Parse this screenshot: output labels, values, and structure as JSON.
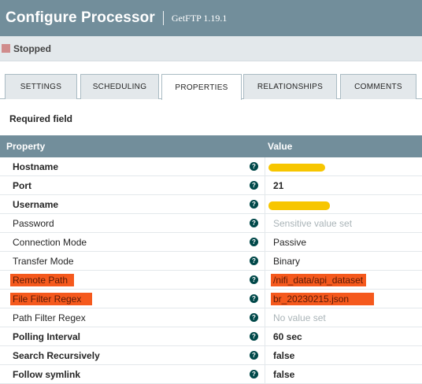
{
  "header": {
    "title": "Configure Processor",
    "subtitle": "GetFTP 1.19.1"
  },
  "status": {
    "label": "Stopped",
    "color": "#d08c8c"
  },
  "tabs": [
    {
      "label": "SETTINGS",
      "active": false
    },
    {
      "label": "SCHEDULING",
      "active": false
    },
    {
      "label": "PROPERTIES",
      "active": true
    },
    {
      "label": "RELATIONSHIPS",
      "active": false
    },
    {
      "label": "COMMENTS",
      "active": false
    }
  ],
  "required_label": "Required field",
  "table": {
    "col_property": "Property",
    "col_value": "Value",
    "info_glyph": "?",
    "rows": [
      {
        "name": "Hostname",
        "required": true,
        "value": "",
        "redacted": true
      },
      {
        "name": "Port",
        "required": true,
        "value": "21"
      },
      {
        "name": "Username",
        "required": true,
        "value": "",
        "redacted": true
      },
      {
        "name": "Password",
        "required": false,
        "value": "Sensitive value set",
        "muted": true
      },
      {
        "name": "Connection Mode",
        "required": false,
        "value": "Passive"
      },
      {
        "name": "Transfer Mode",
        "required": false,
        "value": "Binary"
      },
      {
        "name": "Remote Path",
        "required": false,
        "value": "/nifi_data/api_dataset",
        "highlighted": true
      },
      {
        "name": "File Filter Regex",
        "required": false,
        "value": "br_20230215.json",
        "highlighted": true
      },
      {
        "name": "Path Filter Regex",
        "required": false,
        "value": "No value set",
        "muted": true
      },
      {
        "name": "Polling Interval",
        "required": true,
        "value": "60 sec"
      },
      {
        "name": "Search Recursively",
        "required": true,
        "value": "false"
      },
      {
        "name": "Follow symlink",
        "required": true,
        "value": "false"
      }
    ]
  },
  "colors": {
    "header_bg": "#728e9b",
    "highlight": "#f5591d",
    "redaction": "#f7c600"
  }
}
